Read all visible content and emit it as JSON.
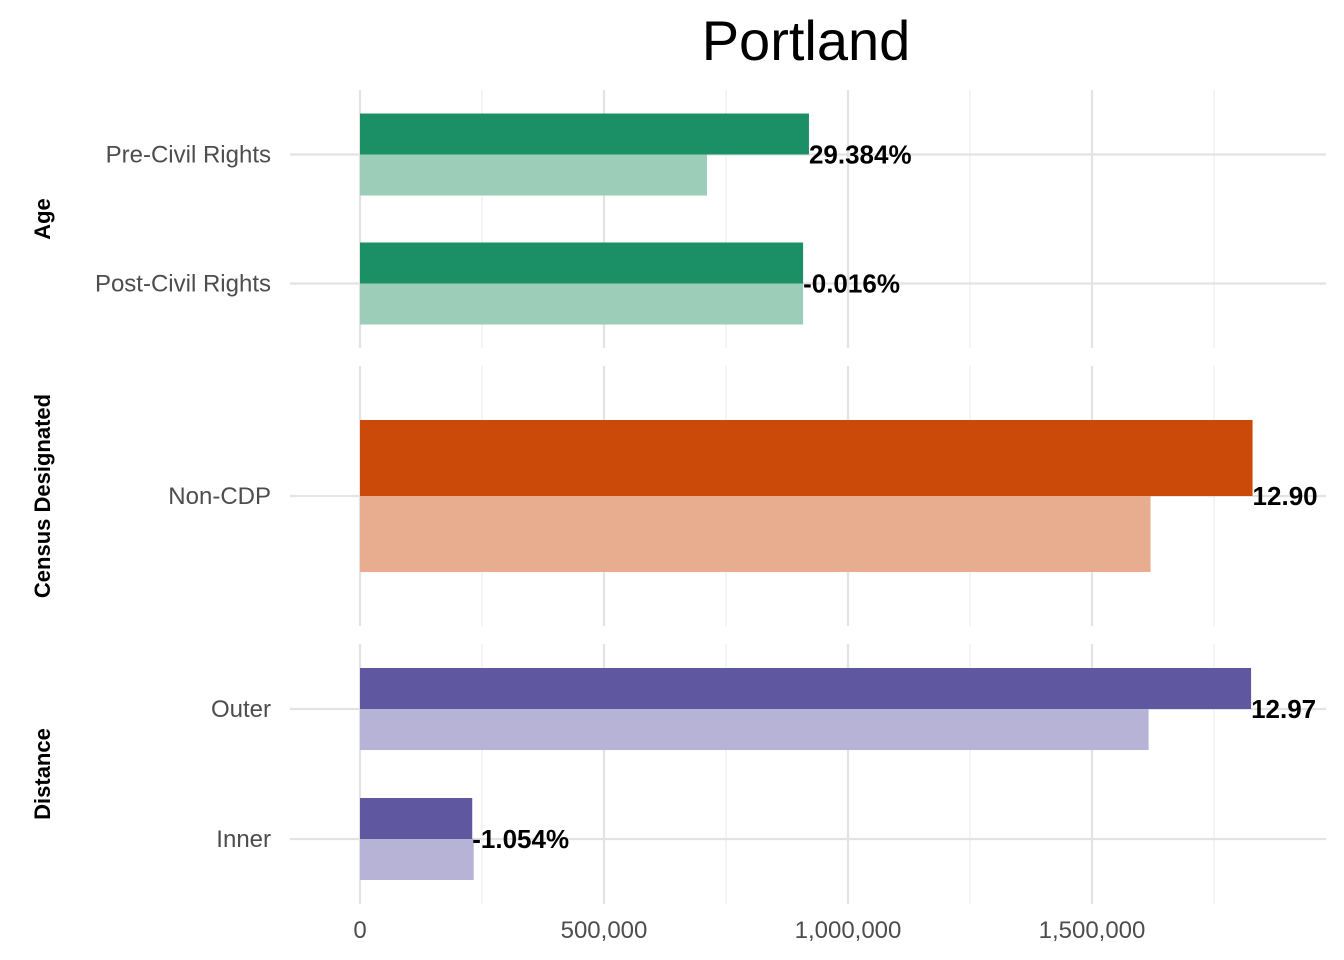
{
  "chart_data": {
    "type": "bar",
    "orientation": "horizontal",
    "title": "Portland",
    "xlim": [
      0,
      1950000
    ],
    "x_ticks": [
      0,
      500000,
      1000000,
      1500000
    ],
    "x_tick_labels": [
      "0",
      "500,000",
      "1,000,000",
      "1,500,000"
    ],
    "grid": true,
    "legend": "none",
    "facets": [
      {
        "name": "Age",
        "color": "#1b9066",
        "light_color": "#9bcdb9",
        "categories": [
          "Pre-Civil Rights",
          "Post-Civil Rights"
        ],
        "series": [
          {
            "values": [
              920000,
              908000
            ]
          },
          {
            "values": [
              711000,
              908000
            ]
          }
        ],
        "labels": [
          "29.384%",
          "-0.016%"
        ]
      },
      {
        "name": "Census Designated",
        "color": "#cc4a09",
        "light_color": "#e8ad8e",
        "categories": [
          "Non-CDP"
        ],
        "series": [
          {
            "values": [
              1829000
            ]
          },
          {
            "values": [
              1620000
            ]
          }
        ],
        "labels": [
          "12.90"
        ]
      },
      {
        "name": "Distance",
        "color": "#5f58a1",
        "light_color": "#b6b3d6",
        "categories": [
          "Outer",
          "Inner"
        ],
        "series": [
          {
            "values": [
              1826000,
              230000
            ]
          },
          {
            "values": [
              1616000,
              233000
            ]
          }
        ],
        "labels": [
          "12.97",
          "-1.054%"
        ]
      }
    ]
  }
}
